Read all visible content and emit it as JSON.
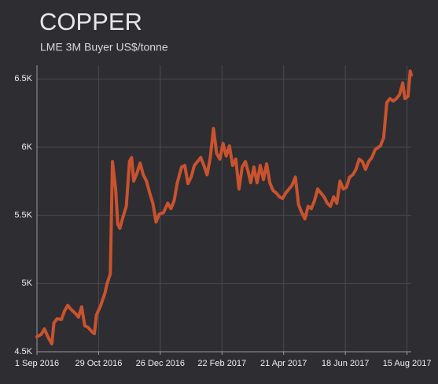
{
  "chart_data": {
    "type": "line",
    "title": "COPPER",
    "subtitle": "LME 3M Buyer US$/tonne",
    "color": "#c9532f",
    "grid": true,
    "x": [
      "2016-09-01",
      "2016-09-05",
      "2016-09-08",
      "2016-09-12",
      "2016-09-15",
      "2016-09-17",
      "2016-09-20",
      "2016-09-24",
      "2016-09-27",
      "2016-09-30",
      "2016-10-03",
      "2016-10-07",
      "2016-10-10",
      "2016-10-13",
      "2016-10-16",
      "2016-10-19",
      "2016-10-23",
      "2016-10-25",
      "2016-10-27",
      "2016-10-31",
      "2016-11-04",
      "2016-11-06",
      "2016-11-09",
      "2016-11-11",
      "2016-11-14",
      "2016-11-16",
      "2016-11-18",
      "2016-11-21",
      "2016-11-24",
      "2016-11-27",
      "2016-11-29",
      "2016-12-01",
      "2016-12-04",
      "2016-12-07",
      "2016-12-10",
      "2016-12-13",
      "2016-12-16",
      "2016-12-19",
      "2016-12-22",
      "2016-12-25",
      "2016-12-29",
      "2017-01-02",
      "2017-01-05",
      "2017-01-08",
      "2017-01-11",
      "2017-01-15",
      "2017-01-18",
      "2017-01-21",
      "2017-01-24",
      "2017-01-27",
      "2017-01-30",
      "2017-02-02",
      "2017-02-05",
      "2017-02-08",
      "2017-02-11",
      "2017-02-14",
      "2017-02-17",
      "2017-02-20",
      "2017-02-23",
      "2017-02-26",
      "2017-03-01",
      "2017-03-04",
      "2017-03-07",
      "2017-03-10",
      "2017-03-13",
      "2017-03-16",
      "2017-03-19",
      "2017-03-21",
      "2017-03-24",
      "2017-03-27",
      "2017-03-30",
      "2017-04-02",
      "2017-04-05",
      "2017-04-08",
      "2017-04-11",
      "2017-04-14",
      "2017-04-17",
      "2017-04-20",
      "2017-04-23",
      "2017-04-26",
      "2017-04-29",
      "2017-05-02",
      "2017-05-05",
      "2017-05-08",
      "2017-05-11",
      "2017-05-14",
      "2017-05-17",
      "2017-05-20",
      "2017-05-23",
      "2017-05-26",
      "2017-05-29",
      "2017-06-01",
      "2017-06-04",
      "2017-06-07",
      "2017-06-10",
      "2017-06-13",
      "2017-06-16",
      "2017-06-19",
      "2017-06-22",
      "2017-06-25",
      "2017-06-28",
      "2017-07-01",
      "2017-07-04",
      "2017-07-07",
      "2017-07-10",
      "2017-07-13",
      "2017-07-16",
      "2017-07-18",
      "2017-07-21",
      "2017-07-24",
      "2017-07-27",
      "2017-07-30",
      "2017-08-02",
      "2017-08-05",
      "2017-08-08",
      "2017-08-11",
      "2017-08-13",
      "2017-08-16",
      "2017-08-18",
      "2017-08-19"
    ],
    "values": [
      4610,
      4627,
      4667,
      4598,
      4558,
      4713,
      4742,
      4736,
      4800,
      4840,
      4811,
      4782,
      4754,
      4829,
      4690,
      4679,
      4644,
      4633,
      4771,
      4840,
      4932,
      5001,
      5071,
      5895,
      5693,
      5434,
      5405,
      5491,
      5566,
      5895,
      5924,
      5751,
      5808,
      5883,
      5797,
      5751,
      5664,
      5589,
      5451,
      5509,
      5520,
      5589,
      5549,
      5607,
      5739,
      5854,
      5866,
      5733,
      5780,
      5866,
      5895,
      5924,
      5866,
      5797,
      5924,
      6137,
      5953,
      5912,
      6027,
      5935,
      6010,
      5866,
      5912,
      5693,
      5854,
      5895,
      5808,
      5739,
      5854,
      5739,
      5866,
      5762,
      5878,
      5739,
      5682,
      5664,
      5636,
      5624,
      5664,
      5693,
      5722,
      5780,
      5578,
      5520,
      5474,
      5566,
      5549,
      5607,
      5693,
      5664,
      5636,
      5589,
      5566,
      5636,
      5589,
      5751,
      5693,
      5705,
      5780,
      5797,
      5837,
      5912,
      5895,
      5837,
      5895,
      5924,
      5981,
      5993,
      6010,
      6068,
      6327,
      6356,
      6338,
      6356,
      6385,
      6471,
      6356,
      6373,
      6558,
      6529
    ],
    "xlim": [
      "2016-09-01",
      "2017-08-19"
    ],
    "xticks": [
      {
        "value": "2016-09-01",
        "label": "1 Sep 2016"
      },
      {
        "value": "2016-10-29",
        "label": "29 Oct 2016"
      },
      {
        "value": "2016-12-26",
        "label": "26 Dec 2016"
      },
      {
        "value": "2017-02-22",
        "label": "22 Feb 2017"
      },
      {
        "value": "2017-04-21",
        "label": "21 Apr 2017"
      },
      {
        "value": "2017-06-18",
        "label": "18 Jun 2017"
      },
      {
        "value": "2017-08-15",
        "label": "15 Aug 2017"
      }
    ],
    "ylim": [
      4500,
      6600
    ],
    "yticks": [
      {
        "value": 4500,
        "label": "4.5K"
      },
      {
        "value": 5000,
        "label": "5K"
      },
      {
        "value": 5500,
        "label": "5.5K"
      },
      {
        "value": 6000,
        "label": "6K"
      },
      {
        "value": 6500,
        "label": "6.5K"
      }
    ]
  }
}
